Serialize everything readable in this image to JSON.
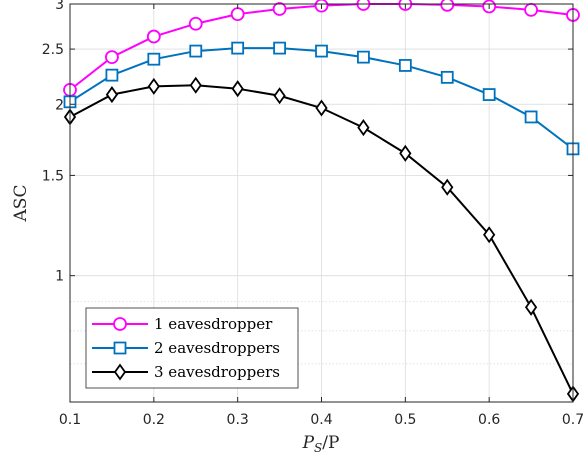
{
  "chart_data": {
    "type": "line",
    "xlabel": "P_S/P",
    "xlabel_main": "P",
    "xlabel_sub": "S",
    "xlabel_denominator": "/P",
    "ylabel": "ASC",
    "y_scale": "log",
    "xlim": [
      0.1,
      0.7
    ],
    "ylim": [
      0.6,
      3.0
    ],
    "grid": true,
    "x_ticks": [
      0.1,
      0.2,
      0.3,
      0.4,
      0.5,
      0.6,
      0.7
    ],
    "x_tick_labels": [
      "0.1",
      "0.2",
      "0.3",
      "0.4",
      "0.5",
      "0.6",
      "0.7"
    ],
    "y_ticks": [
      1,
      1.5,
      2,
      2.5,
      3
    ],
    "y_tick_labels": [
      "1",
      "1.5",
      "2",
      "2.5",
      "3"
    ],
    "legend_position": "bottom-left",
    "x": [
      0.1,
      0.15,
      0.2,
      0.25,
      0.3,
      0.35,
      0.4,
      0.45,
      0.5,
      0.55,
      0.6,
      0.65,
      0.7
    ],
    "series": [
      {
        "name": "1 eavesdropper",
        "color": "#ff00ff",
        "marker": "circle",
        "values": [
          2.12,
          2.42,
          2.63,
          2.77,
          2.88,
          2.94,
          2.98,
          3.0,
          3.0,
          2.99,
          2.97,
          2.93,
          2.87
        ]
      },
      {
        "name": "2 eavesdroppers",
        "color": "#0072bd",
        "marker": "square",
        "values": [
          2.02,
          2.25,
          2.4,
          2.48,
          2.51,
          2.51,
          2.48,
          2.42,
          2.34,
          2.23,
          2.08,
          1.9,
          1.67
        ]
      },
      {
        "name": "3 eavesdroppers",
        "color": "#000000",
        "marker": "diamond",
        "values": [
          1.9,
          2.08,
          2.15,
          2.16,
          2.13,
          2.07,
          1.97,
          1.82,
          1.64,
          1.43,
          1.18,
          0.88,
          0.62
        ]
      }
    ]
  }
}
